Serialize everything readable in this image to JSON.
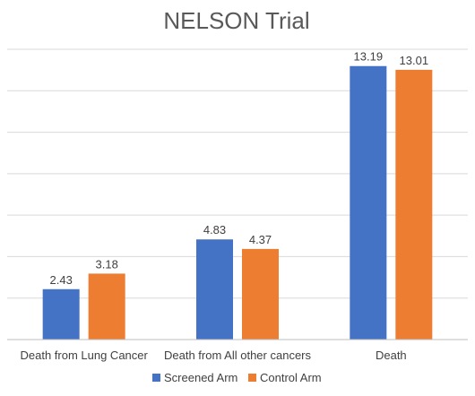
{
  "chart_data": {
    "type": "bar",
    "title": "NELSON Trial",
    "categories": [
      "Death from Lung Cancer",
      "Death from All other cancers",
      "Death"
    ],
    "series": [
      {
        "name": "Screened Arm",
        "values": [
          2.43,
          4.83,
          13.19
        ],
        "color": "#4472C4"
      },
      {
        "name": "Control Arm",
        "values": [
          3.18,
          4.37,
          13.01
        ],
        "color": "#ED7D31"
      }
    ],
    "data_labels": [
      [
        "2.43",
        "4.83",
        "13.19"
      ],
      [
        "3.18",
        "4.37",
        "13.01"
      ]
    ],
    "ylim": [
      0,
      14
    ],
    "ytick_step": 2,
    "grid": true,
    "legend_position": "bottom",
    "xlabel": "",
    "ylabel": ""
  }
}
